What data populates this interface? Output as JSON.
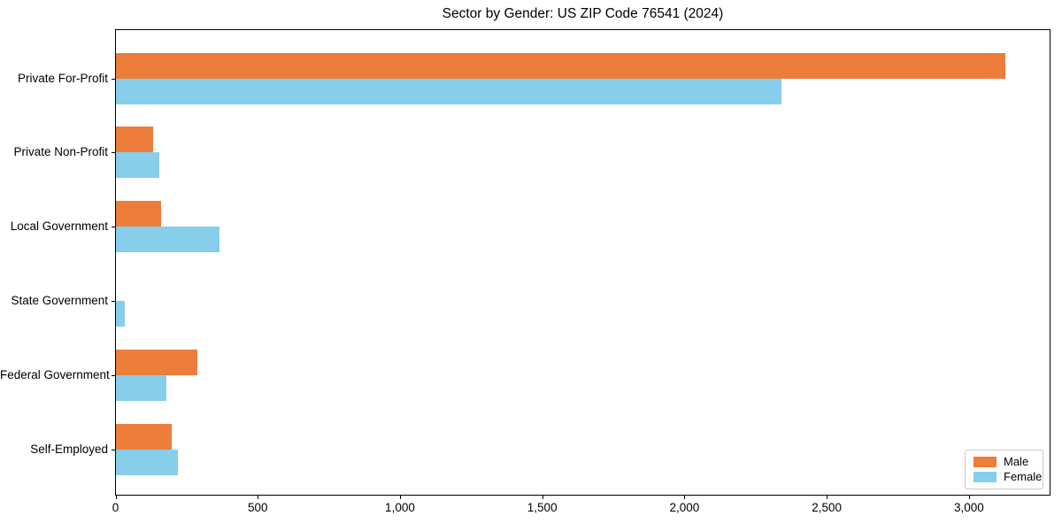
{
  "chart_data": {
    "type": "bar",
    "orientation": "horizontal",
    "title": "Sector by Gender: US ZIP Code 76541 (2024)",
    "xlabel": "",
    "ylabel": "",
    "categories": [
      "Private For-Profit",
      "Private Non-Profit",
      "Local Government",
      "State Government",
      "Federal Government",
      "Self-Employed"
    ],
    "series": [
      {
        "name": "Male",
        "color": "#ec7d3b",
        "values": [
          3128,
          131,
          159,
          0,
          289,
          196
        ]
      },
      {
        "name": "Female",
        "color": "#87ceeb",
        "values": [
          2340,
          154,
          367,
          33,
          178,
          220
        ]
      }
    ],
    "xlim": [
      0,
      3285
    ],
    "xticks": {
      "values": [
        0,
        500,
        1000,
        1500,
        2000,
        2500,
        3000
      ],
      "labels": [
        "0",
        "500",
        "1,000",
        "1,500",
        "2,000",
        "2,500",
        "3,000"
      ]
    },
    "grid": false,
    "legend": {
      "position": "lower right"
    }
  }
}
